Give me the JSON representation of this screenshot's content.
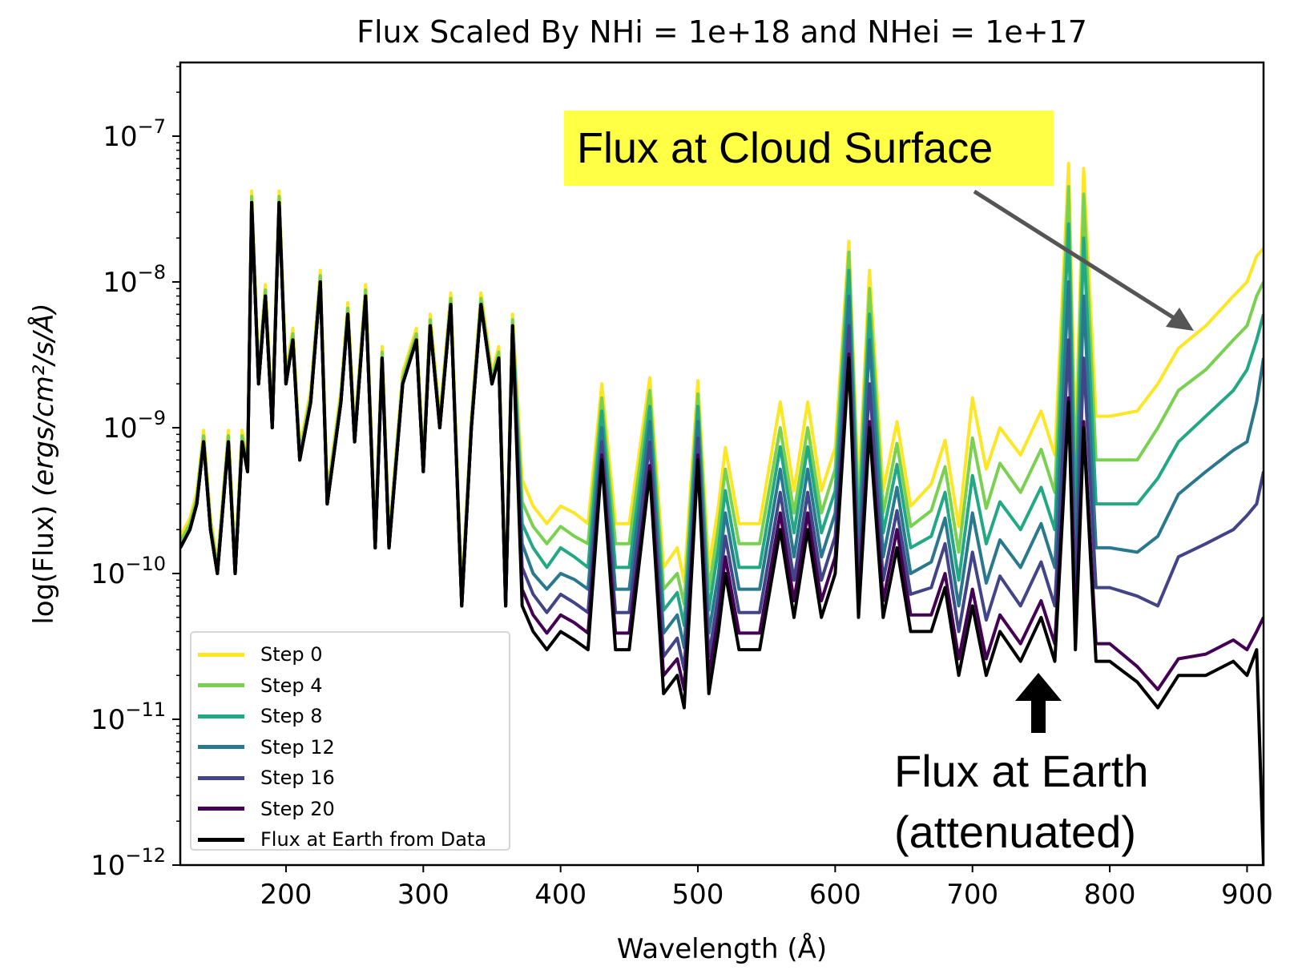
{
  "chart_data": {
    "type": "line",
    "title": "Flux Scaled By NHi = 1e+18 and NHei = 1e+17",
    "xlabel": "Wavelength (Å)",
    "ylabel_prefix": "log(Flux) ",
    "ylabel_units": "(ergs/cm²/s/Å)",
    "xlim": [
      123,
      912
    ],
    "ylim": [
      1e-12,
      3.2e-07
    ],
    "yscale": "log",
    "grid": false,
    "legend_position": "lower-left",
    "x_ticks": [
      200,
      300,
      400,
      500,
      600,
      700,
      800,
      900
    ],
    "x_tick_labels": [
      "200",
      "300",
      "400",
      "500",
      "600",
      "700",
      "800",
      "900"
    ],
    "y_ticks": [
      {
        "value": 1e-07,
        "base": "10",
        "exp": "−7"
      },
      {
        "value": 1e-08,
        "base": "10",
        "exp": "−8"
      },
      {
        "value": 1e-09,
        "base": "10",
        "exp": "−9"
      },
      {
        "value": 1e-10,
        "base": "10",
        "exp": "−10"
      },
      {
        "value": 1e-11,
        "base": "10",
        "exp": "−11"
      },
      {
        "value": 1e-12,
        "base": "10",
        "exp": "−12"
      }
    ],
    "x": [
      123,
      130,
      135,
      140,
      145,
      150,
      158,
      163,
      168,
      172,
      175,
      180,
      185,
      190,
      195,
      200,
      205,
      210,
      218,
      225,
      230,
      240,
      245,
      250,
      258,
      265,
      270,
      275,
      285,
      295,
      300,
      305,
      312,
      320,
      328,
      335,
      342,
      350,
      355,
      360,
      365,
      372,
      380,
      390,
      400,
      410,
      420,
      430,
      440,
      450,
      465,
      475,
      485,
      490,
      500,
      508,
      515,
      520,
      530,
      545,
      560,
      570,
      580,
      590,
      600,
      610,
      617,
      625,
      635,
      645,
      655,
      670,
      680,
      690,
      700,
      710,
      720,
      735,
      750,
      760,
      770,
      775,
      781,
      790,
      800,
      820,
      835,
      850,
      870,
      890,
      900,
      907,
      912
    ],
    "series": [
      {
        "name": "Step 0",
        "color": "#fde725",
        "values": [
          1.8e-10,
          2.4e-10,
          3.6e-10,
          9.6e-10,
          2.4e-10,
          1.2e-10,
          9.6e-10,
          1.2e-10,
          9.6e-10,
          6e-10,
          4.2e-08,
          2.4e-09,
          9.6e-09,
          1.2e-09,
          4.2e-08,
          2.4e-09,
          4.8e-09,
          7.2e-10,
          1.8e-09,
          1.2e-08,
          3.6e-10,
          1.8e-09,
          7.2e-09,
          9.6e-10,
          9.6e-09,
          1.8e-10,
          3.6e-09,
          1.8e-10,
          2.4e-09,
          4.8e-09,
          6e-10,
          6e-09,
          1.2e-09,
          8.4e-09,
          7.2e-11,
          1.2e-09,
          8.4e-09,
          2.4e-09,
          3.6e-09,
          7.2e-11,
          6e-09,
          4.4e-10,
          2.9e-10,
          2.2e-10,
          2.9e-10,
          2.6e-10,
          2.2e-10,
          2e-09,
          2.2e-10,
          2.2e-10,
          2.2e-09,
          1.1e-10,
          1.5e-10,
          8.8e-11,
          2.1e-09,
          1.1e-10,
          2.9e-10,
          7.3e-10,
          2.2e-10,
          2.2e-10,
          1.5e-09,
          3.7e-10,
          1.5e-09,
          3.7e-10,
          7.3e-10,
          1.9e-08,
          3.7e-10,
          1.2e-08,
          3.7e-10,
          1.1e-09,
          2.9e-10,
          4.1e-10,
          8.2e-10,
          2.1e-10,
          1.6e-09,
          5.2e-10,
          1e-09,
          6.5e-10,
          1.3e-09,
          6.5e-10,
          6.5e-08,
          7.8e-10,
          6e-08,
          1.2e-09,
          1.2e-09,
          1.3e-09,
          2e-09,
          3.5e-09,
          5e-09,
          8e-09,
          1e-08,
          1.5e-08,
          1.7e-08
        ]
      },
      {
        "name": "Step 4",
        "color": "#7ad151",
        "values": [
          1.65e-10,
          2.2e-10,
          3.3e-10,
          8.8e-10,
          2.2e-10,
          1.1e-10,
          8.8e-10,
          1.1e-10,
          8.8e-10,
          5.5e-10,
          3.85e-08,
          2.2e-09,
          8.8e-09,
          1.1e-09,
          3.85e-08,
          2.2e-09,
          4.4e-09,
          6.6e-10,
          1.65e-09,
          1.1e-08,
          3.3e-10,
          1.65e-09,
          6.6e-09,
          8.8e-10,
          8.8e-09,
          1.65e-10,
          3.3e-09,
          1.65e-10,
          2.2e-09,
          4.4e-09,
          5.5e-10,
          5.5e-09,
          1.1e-09,
          7.7e-09,
          6.6e-11,
          1.1e-09,
          7.7e-09,
          2.2e-09,
          3.3e-09,
          6.6e-11,
          5.5e-09,
          3.1e-10,
          2.1e-10,
          1.6e-10,
          2.1e-10,
          1.8e-10,
          1.6e-10,
          1.6e-09,
          1.6e-10,
          1.6e-10,
          1.8e-09,
          7.8e-11,
          1e-10,
          6.2e-11,
          1.7e-09,
          7.8e-11,
          2.1e-10,
          5.2e-10,
          1.6e-10,
          1.6e-10,
          1e-09,
          2.6e-10,
          1e-09,
          2.6e-10,
          5.2e-10,
          1.6e-08,
          2.6e-10,
          9e-09,
          2.6e-10,
          7.8e-10,
          2.1e-10,
          2.7e-10,
          5.4e-10,
          1.4e-10,
          8.5e-10,
          2.8e-10,
          5.7e-10,
          3.6e-10,
          7.1e-10,
          3.6e-10,
          4.5e-08,
          4.3e-10,
          4e-08,
          6e-10,
          6e-10,
          6e-10,
          1e-09,
          1.8e-09,
          2.5e-09,
          4e-09,
          5e-09,
          8e-09,
          1e-08
        ]
      },
      {
        "name": "Step 8",
        "color": "#22a884",
        "values": [
          1.5e-10,
          2e-10,
          3e-10,
          8e-10,
          2e-10,
          1e-10,
          8e-10,
          1e-10,
          8e-10,
          5e-10,
          3.5e-08,
          2e-09,
          8e-09,
          1e-09,
          3.5e-08,
          2e-09,
          4e-09,
          6e-10,
          1.5e-09,
          1e-08,
          3e-10,
          1.5e-09,
          6e-09,
          8e-10,
          8e-09,
          1.5e-10,
          3e-09,
          1.5e-10,
          2e-09,
          4e-09,
          5e-10,
          5e-09,
          1e-09,
          7e-09,
          6e-11,
          1e-09,
          7e-09,
          2e-09,
          3e-09,
          6e-11,
          5e-09,
          2.2e-10,
          1.5e-10,
          1.1e-10,
          1.5e-10,
          1.3e-10,
          1.1e-10,
          1.3e-09,
          1.1e-10,
          1.1e-10,
          1.4e-09,
          5.6e-11,
          7.4e-11,
          4.4e-11,
          1.4e-09,
          5.6e-11,
          1.5e-10,
          3.7e-10,
          1.1e-10,
          1.1e-10,
          7.4e-10,
          1.9e-10,
          7.4e-10,
          1.9e-10,
          3.7e-10,
          1.2e-08,
          1.9e-10,
          6e-09,
          1.9e-10,
          5.6e-10,
          1.5e-10,
          1.8e-10,
          3.6e-10,
          9e-11,
          4.7e-10,
          1.6e-10,
          3.1e-10,
          2e-10,
          3.9e-10,
          2e-10,
          2.5e-08,
          2.3e-10,
          2e-08,
          3e-10,
          3e-10,
          3e-10,
          4.5e-10,
          8e-10,
          1.2e-09,
          1.8e-09,
          2.5e-09,
          4e-09,
          6e-09
        ]
      },
      {
        "name": "Step 12",
        "color": "#2a788e",
        "values": [
          1.5e-10,
          2e-10,
          3e-10,
          8e-10,
          2e-10,
          1e-10,
          8e-10,
          1e-10,
          8e-10,
          5e-10,
          3.5e-08,
          2e-09,
          8e-09,
          1e-09,
          3.5e-08,
          2e-09,
          4e-09,
          6e-10,
          1.5e-09,
          1e-08,
          3e-10,
          1.5e-09,
          6e-09,
          8e-10,
          8e-09,
          1.5e-10,
          3e-09,
          1.5e-10,
          2e-09,
          4e-09,
          5e-10,
          5e-09,
          1e-09,
          7e-09,
          6e-11,
          1e-09,
          7e-09,
          2e-09,
          3e-09,
          6e-11,
          5e-09,
          1.6e-10,
          1e-10,
          7.8e-11,
          1e-10,
          9.1e-11,
          7.8e-11,
          1e-09,
          7.8e-11,
          7.8e-11,
          1.1e-09,
          3.9e-11,
          5.2e-11,
          3.1e-11,
          1.1e-09,
          3.9e-11,
          1e-10,
          2.6e-10,
          7.8e-11,
          7.8e-11,
          5.2e-10,
          1.3e-10,
          5.2e-10,
          1.3e-10,
          2.6e-10,
          8e-09,
          1.3e-10,
          4e-09,
          1.3e-10,
          3.9e-10,
          1e-10,
          1.2e-10,
          2.4e-10,
          6e-11,
          2.6e-10,
          8.6e-11,
          1.7e-10,
          1.1e-10,
          2.2e-10,
          1.1e-10,
          1e-08,
          1.3e-10,
          8e-09,
          1.5e-10,
          1.5e-10,
          1.4e-10,
          1.8e-10,
          3.5e-10,
          5e-10,
          7e-10,
          8e-10,
          1.5e-09,
          3e-09
        ]
      },
      {
        "name": "Step 16",
        "color": "#414487",
        "values": [
          1.5e-10,
          2e-10,
          3e-10,
          8e-10,
          2e-10,
          1e-10,
          8e-10,
          1e-10,
          8e-10,
          5e-10,
          3.5e-08,
          2e-09,
          8e-09,
          1e-09,
          3.5e-08,
          2e-09,
          4e-09,
          6e-10,
          1.5e-09,
          1e-08,
          3e-10,
          1.5e-09,
          6e-09,
          8e-10,
          8e-09,
          1.5e-10,
          3e-09,
          1.5e-10,
          2e-09,
          4e-09,
          5e-10,
          5e-09,
          1e-09,
          7e-09,
          6e-11,
          1e-09,
          7e-09,
          2e-09,
          3e-09,
          6e-11,
          5e-09,
          1.1e-10,
          7.2e-11,
          5.4e-11,
          7.2e-11,
          6.3e-11,
          5.4e-11,
          8e-10,
          5.4e-11,
          5.4e-11,
          8e-10,
          2.7e-11,
          3.6e-11,
          2.2e-11,
          8.5e-10,
          2.7e-11,
          7.2e-11,
          1.8e-10,
          5.4e-11,
          5.4e-11,
          3.6e-10,
          9e-11,
          3.6e-10,
          9e-11,
          1.8e-10,
          5e-09,
          9e-11,
          2e-09,
          9e-11,
          2.7e-10,
          7.2e-11,
          8e-11,
          1.6e-10,
          4e-11,
          1.4e-10,
          4.8e-11,
          9.6e-11,
          6e-11,
          1.2e-10,
          6e-11,
          4e-09,
          7.2e-11,
          3e-09,
          8e-11,
          8e-11,
          7e-11,
          6e-11,
          1.3e-10,
          1.6e-10,
          2e-10,
          2.5e-10,
          3e-10,
          5e-10
        ]
      },
      {
        "name": "Step 20",
        "color": "#440154",
        "values": [
          1.5e-10,
          2e-10,
          3e-10,
          8e-10,
          2e-10,
          1e-10,
          8e-10,
          1e-10,
          8e-10,
          5e-10,
          3.5e-08,
          2e-09,
          8e-09,
          1e-09,
          3.5e-08,
          2e-09,
          4e-09,
          6e-10,
          1.5e-09,
          1e-08,
          3e-10,
          1.5e-09,
          6e-09,
          8e-10,
          8e-09,
          1.5e-10,
          3e-09,
          1.5e-10,
          2e-09,
          4e-09,
          5e-10,
          5e-09,
          1e-09,
          7e-09,
          6e-11,
          1e-09,
          7e-09,
          2e-09,
          3e-09,
          6e-11,
          5e-09,
          7.8e-11,
          5.2e-11,
          3.9e-11,
          5.2e-11,
          4.6e-11,
          3.9e-11,
          6.5e-10,
          3.9e-11,
          3.9e-11,
          5.5e-10,
          2e-11,
          2.6e-11,
          1.6e-11,
          6.5e-10,
          2e-11,
          5.2e-11,
          1.3e-10,
          3.9e-11,
          3.9e-11,
          2.6e-10,
          6.5e-11,
          2.6e-10,
          6.5e-11,
          1.3e-10,
          3.2e-09,
          6.5e-11,
          1.1e-09,
          6.5e-11,
          2e-10,
          5.2e-11,
          5.2e-11,
          1e-10,
          2.6e-11,
          7.8e-11,
          2.6e-11,
          5.2e-11,
          3.3e-11,
          6.5e-11,
          3.3e-11,
          1.6e-09,
          3.9e-11,
          1.1e-09,
          3.3e-11,
          3.3e-11,
          2.3e-11,
          1.6e-11,
          2.6e-11,
          2.8e-11,
          3.5e-11,
          3e-11,
          4e-11,
          5e-11
        ]
      },
      {
        "name": "Flux at Earth from Data",
        "color": "#000000",
        "values": [
          1.5e-10,
          2e-10,
          3e-10,
          8e-10,
          2e-10,
          1e-10,
          8e-10,
          1e-10,
          8e-10,
          5e-10,
          3.5e-08,
          2e-09,
          8e-09,
          1e-09,
          3.5e-08,
          2e-09,
          4e-09,
          6e-10,
          1.5e-09,
          1e-08,
          3e-10,
          1.5e-09,
          6e-09,
          8e-10,
          8e-09,
          1.5e-10,
          3e-09,
          1.5e-10,
          2e-09,
          4e-09,
          5e-10,
          5e-09,
          1e-09,
          7e-09,
          6e-11,
          1e-09,
          7e-09,
          2e-09,
          3e-09,
          6e-11,
          5e-09,
          6e-11,
          4e-11,
          3e-11,
          4e-11,
          3.5e-11,
          3e-11,
          6e-10,
          3e-11,
          3e-11,
          5e-10,
          1.5e-11,
          2e-11,
          1.2e-11,
          6e-10,
          1.5e-11,
          4e-11,
          1e-10,
          3e-11,
          3e-11,
          2e-10,
          5e-11,
          2e-10,
          5e-11,
          1e-10,
          3e-09,
          5e-11,
          1e-09,
          5e-11,
          1.5e-10,
          4e-11,
          4e-11,
          8e-11,
          2e-11,
          6e-11,
          2e-11,
          4e-11,
          2.5e-11,
          5e-11,
          2.5e-11,
          1.5e-09,
          3e-11,
          1e-09,
          2.5e-11,
          2.5e-11,
          1.8e-11,
          1.2e-11,
          2e-11,
          2e-11,
          2.5e-11,
          2e-11,
          3e-11,
          1e-12
        ]
      }
    ],
    "annotations": {
      "cloud_surface": {
        "text": "Flux at Cloud Surface",
        "box_color": "#ffff45",
        "arrow_color": "#555555"
      },
      "earth_line1": "Flux at Earth",
      "earth_line2": "(attenuated)"
    }
  }
}
